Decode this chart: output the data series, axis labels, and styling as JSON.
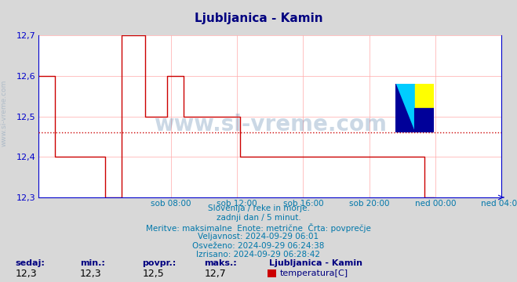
{
  "title": "Ljubljanica - Kamin",
  "title_color": "#000080",
  "title_fontsize": 11,
  "bg_color": "#d8d8d8",
  "plot_bg_color": "#ffffff",
  "line_color": "#cc0000",
  "line_width": 1.0,
  "avg_line_value": 12.46,
  "avg_line_color": "#cc0000",
  "axis_color": "#0000cc",
  "grid_color": "#ffaaaa",
  "ylim": [
    12.3,
    12.7
  ],
  "yticks": [
    12.3,
    12.4,
    12.5,
    12.6,
    12.7
  ],
  "xaxis_labels": [
    "sob 08:00",
    "sob 12:00",
    "sob 16:00",
    "sob 20:00",
    "ned 00:00",
    "ned 04:00"
  ],
  "xaxis_positions": [
    96,
    144,
    192,
    240,
    288,
    336
  ],
  "total_points": 288,
  "xlabel_color": "#0077aa",
  "info_lines": [
    "Slovenija / reke in morje.",
    "zadnji dan / 5 minut.",
    "Meritve: maksimalne  Enote: metrične  Črta: povprečje",
    "Veljavnost: 2024-09-29 06:01",
    "Osveženo: 2024-09-29 06:24:38",
    "Izrisano: 2024-09-29 06:28:42"
  ],
  "info_color": "#0077aa",
  "info_fontsize": 7.5,
  "bottom_labels": [
    "sedaj:",
    "min.:",
    "povpr.:",
    "maks.:"
  ],
  "bottom_values": [
    "12,3",
    "12,3",
    "12,5",
    "12,7"
  ],
  "bottom_label_color": "#000080",
  "legend_name": "Ljubljanica - Kamin",
  "legend_series": "temperatura[C]",
  "legend_color": "#cc0000",
  "watermark_color": "#336699",
  "watermark_alpha": 0.25,
  "watermark_text": "www.si-vreme.com",
  "temperature_data": [
    12.6,
    12.6,
    12.6,
    12.6,
    12.6,
    12.6,
    12.6,
    12.6,
    12.6,
    12.6,
    12.6,
    12.6,
    12.4,
    12.4,
    12.4,
    12.4,
    12.4,
    12.4,
    12.4,
    12.4,
    12.4,
    12.4,
    12.4,
    12.4,
    12.4,
    12.4,
    12.4,
    12.4,
    12.4,
    12.4,
    12.4,
    12.4,
    12.4,
    12.4,
    12.4,
    12.4,
    12.4,
    12.4,
    12.4,
    12.4,
    12.4,
    12.4,
    12.4,
    12.4,
    12.4,
    12.4,
    12.4,
    12.4,
    12.3,
    12.3,
    12.3,
    12.3,
    12.3,
    12.3,
    12.3,
    12.3,
    12.3,
    12.3,
    12.3,
    12.3,
    12.7,
    12.7,
    12.7,
    12.7,
    12.7,
    12.7,
    12.7,
    12.7,
    12.7,
    12.7,
    12.7,
    12.7,
    12.7,
    12.7,
    12.7,
    12.7,
    12.7,
    12.5,
    12.5,
    12.5,
    12.5,
    12.5,
    12.5,
    12.5,
    12.5,
    12.5,
    12.5,
    12.5,
    12.5,
    12.5,
    12.5,
    12.5,
    12.5,
    12.6,
    12.6,
    12.6,
    12.6,
    12.6,
    12.6,
    12.6,
    12.6,
    12.6,
    12.6,
    12.6,
    12.6,
    12.5,
    12.5,
    12.5,
    12.5,
    12.5,
    12.5,
    12.5,
    12.5,
    12.5,
    12.5,
    12.5,
    12.5,
    12.5,
    12.5,
    12.5,
    12.5,
    12.5,
    12.5,
    12.5,
    12.5,
    12.5,
    12.5,
    12.5,
    12.5,
    12.5,
    12.5,
    12.5,
    12.5,
    12.5,
    12.5,
    12.5,
    12.5,
    12.5,
    12.5,
    12.5,
    12.5,
    12.5,
    12.5,
    12.5,
    12.5,
    12.5,
    12.4,
    12.4,
    12.4,
    12.4,
    12.4,
    12.4,
    12.4,
    12.4,
    12.4,
    12.4,
    12.4,
    12.4,
    12.4,
    12.4,
    12.4,
    12.4,
    12.4,
    12.4,
    12.4,
    12.4,
    12.4,
    12.4,
    12.4,
    12.4,
    12.4,
    12.4,
    12.4,
    12.4,
    12.4,
    12.4,
    12.4,
    12.4,
    12.4,
    12.4,
    12.4,
    12.4,
    12.4,
    12.4,
    12.4,
    12.4,
    12.4,
    12.4,
    12.4,
    12.4,
    12.4,
    12.4,
    12.4,
    12.4,
    12.4,
    12.4,
    12.4,
    12.4,
    12.4,
    12.4,
    12.4,
    12.4,
    12.4,
    12.4,
    12.4,
    12.4,
    12.4,
    12.4,
    12.4,
    12.4,
    12.4,
    12.4,
    12.4,
    12.4,
    12.4,
    12.4,
    12.4,
    12.4,
    12.4,
    12.4,
    12.4,
    12.4,
    12.4,
    12.4,
    12.4,
    12.4,
    12.4,
    12.4,
    12.4,
    12.4,
    12.4,
    12.4,
    12.4,
    12.4,
    12.4,
    12.4,
    12.4,
    12.4,
    12.4,
    12.4,
    12.4,
    12.4,
    12.4,
    12.4,
    12.4,
    12.4,
    12.4,
    12.4,
    12.4,
    12.4,
    12.4,
    12.4,
    12.4,
    12.4,
    12.4,
    12.4,
    12.4,
    12.4,
    12.4,
    12.4,
    12.4,
    12.4,
    12.4,
    12.4,
    12.4,
    12.4,
    12.4,
    12.4,
    12.4,
    12.4,
    12.4,
    12.4,
    12.4,
    12.4,
    12.4,
    12.4,
    12.4,
    12.4,
    12.4,
    12.4,
    12.3,
    12.3,
    12.3,
    12.3,
    12.3,
    12.3,
    12.3,
    12.3
  ]
}
